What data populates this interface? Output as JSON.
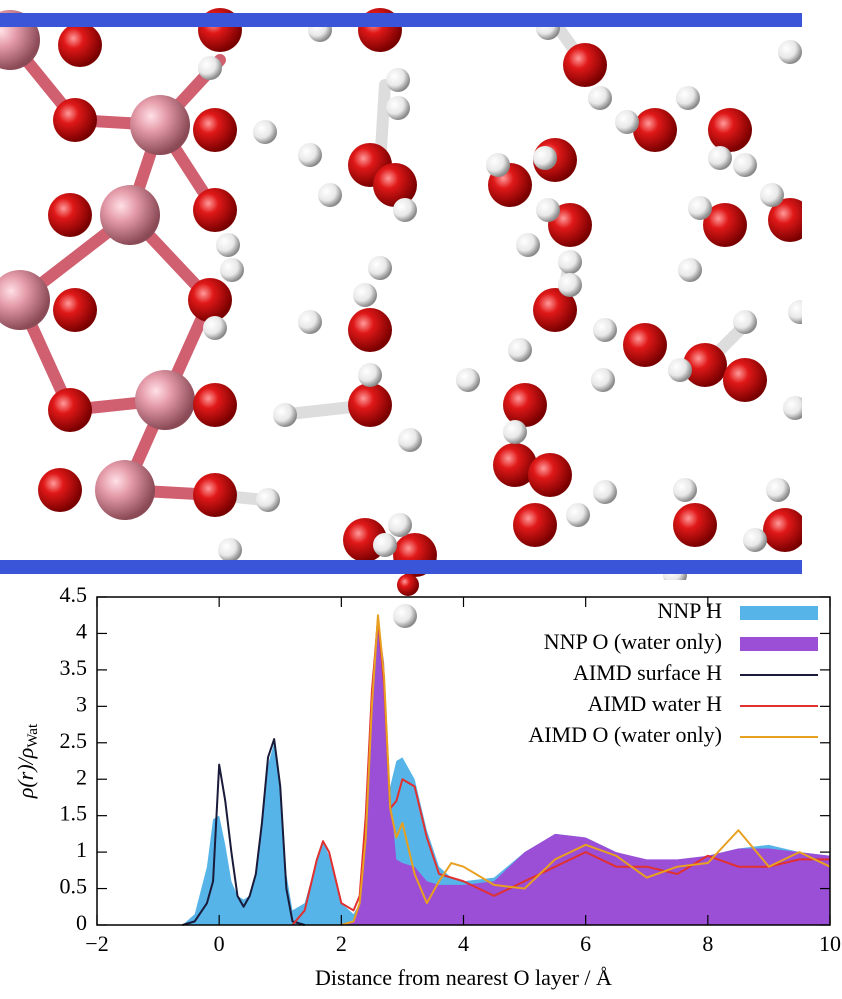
{
  "chart_data": {
    "type": "line",
    "ylabel": "ρ(r)/ρ",
    "ylabel_sub": "Wat",
    "xlabel": "Distance from nearest O layer / Å",
    "xlim": [
      -2,
      10
    ],
    "ylim": [
      0,
      4.5
    ],
    "xticks": [
      {
        "value": -2,
        "label": "−2"
      },
      0,
      2,
      4,
      6,
      8,
      10
    ],
    "yticks": [
      0,
      0.5,
      1,
      1.5,
      2,
      2.5,
      3,
      3.5,
      4,
      4.5
    ],
    "legend": "upper right",
    "x": [
      -2,
      -1,
      -0.6,
      -0.4,
      -0.2,
      -0.1,
      0,
      0.1,
      0.2,
      0.3,
      0.4,
      0.5,
      0.6,
      0.7,
      0.8,
      0.9,
      1.0,
      1.1,
      1.2,
      1.4,
      1.6,
      1.7,
      1.8,
      2.0,
      2.2,
      2.3,
      2.4,
      2.5,
      2.6,
      2.7,
      2.8,
      2.9,
      3.0,
      3.2,
      3.4,
      3.6,
      3.8,
      4.0,
      4.5,
      5.0,
      5.5,
      6.0,
      6.5,
      7.0,
      7.5,
      8.0,
      8.5,
      9.0,
      9.5,
      10
    ],
    "series": [
      {
        "name": "NNP H",
        "style": "area",
        "color": "#56b4e9",
        "values": [
          0,
          0,
          0,
          0.15,
          0.8,
          1.45,
          1.5,
          1.1,
          0.6,
          0.4,
          0.35,
          0.4,
          0.7,
          1.4,
          2.2,
          2.5,
          1.9,
          0.7,
          0.2,
          0.3,
          0.9,
          1.15,
          0.95,
          0.3,
          0.15,
          0.3,
          0.6,
          0.9,
          1.2,
          1.5,
          1.9,
          2.25,
          2.3,
          2.0,
          1.3,
          0.8,
          0.65,
          0.6,
          0.65,
          1.0,
          1.25,
          1.2,
          1.0,
          0.88,
          0.88,
          0.95,
          1.05,
          1.1,
          1.0,
          0.95
        ]
      },
      {
        "name": "NNP O (water only)",
        "style": "area",
        "color": "#9b4fd6",
        "values": [
          0,
          0,
          0,
          0,
          0,
          0,
          0,
          0,
          0,
          0,
          0,
          0,
          0,
          0,
          0,
          0,
          0,
          0,
          0,
          0,
          0,
          0,
          0,
          0,
          0.05,
          0.3,
          1.2,
          3.0,
          4.2,
          3.6,
          1.8,
          0.9,
          0.85,
          0.8,
          0.6,
          0.55,
          0.55,
          0.55,
          0.6,
          1.0,
          1.25,
          1.2,
          1.0,
          0.9,
          0.9,
          0.95,
          1.05,
          1.05,
          1.0,
          0.95
        ]
      },
      {
        "name": "AIMD surface H",
        "style": "line",
        "color": "#1a1a3a",
        "values": [
          null,
          null,
          0,
          0.05,
          0.3,
          0.6,
          2.2,
          1.7,
          1.0,
          0.4,
          0.25,
          0.4,
          0.7,
          1.4,
          2.3,
          2.55,
          1.9,
          0.5,
          0.05,
          0,
          null,
          null,
          null,
          null,
          null,
          null,
          null,
          null,
          null,
          null,
          null,
          null,
          null,
          null,
          null,
          null,
          null,
          null,
          null,
          null,
          null,
          null,
          null,
          null,
          null,
          null,
          null,
          null,
          null,
          null
        ]
      },
      {
        "name": "AIMD water H",
        "style": "line",
        "color": "#e03030",
        "values": [
          null,
          null,
          null,
          null,
          null,
          null,
          null,
          null,
          null,
          null,
          null,
          null,
          null,
          null,
          null,
          null,
          null,
          null,
          0,
          0.2,
          0.9,
          1.15,
          1.0,
          0.3,
          0.2,
          0.4,
          1.5,
          3.2,
          4.2,
          3.3,
          1.6,
          1.7,
          2.0,
          1.9,
          1.2,
          0.7,
          0.65,
          0.6,
          0.4,
          0.6,
          0.8,
          1.0,
          0.8,
          0.8,
          0.7,
          0.95,
          0.8,
          0.8,
          0.9,
          0.9
        ]
      },
      {
        "name": "AIMD O (water only)",
        "style": "line",
        "color": "#e8a020",
        "values": [
          null,
          null,
          null,
          null,
          null,
          null,
          null,
          null,
          null,
          null,
          null,
          null,
          null,
          null,
          null,
          null,
          null,
          null,
          null,
          null,
          null,
          null,
          null,
          0,
          0.05,
          0.3,
          1.2,
          3.0,
          4.25,
          3.4,
          1.6,
          1.2,
          1.4,
          0.7,
          0.3,
          0.6,
          0.85,
          0.8,
          0.55,
          0.5,
          0.9,
          1.1,
          0.95,
          0.65,
          0.8,
          0.85,
          1.3,
          0.8,
          1.0,
          0.8
        ]
      }
    ]
  }
}
